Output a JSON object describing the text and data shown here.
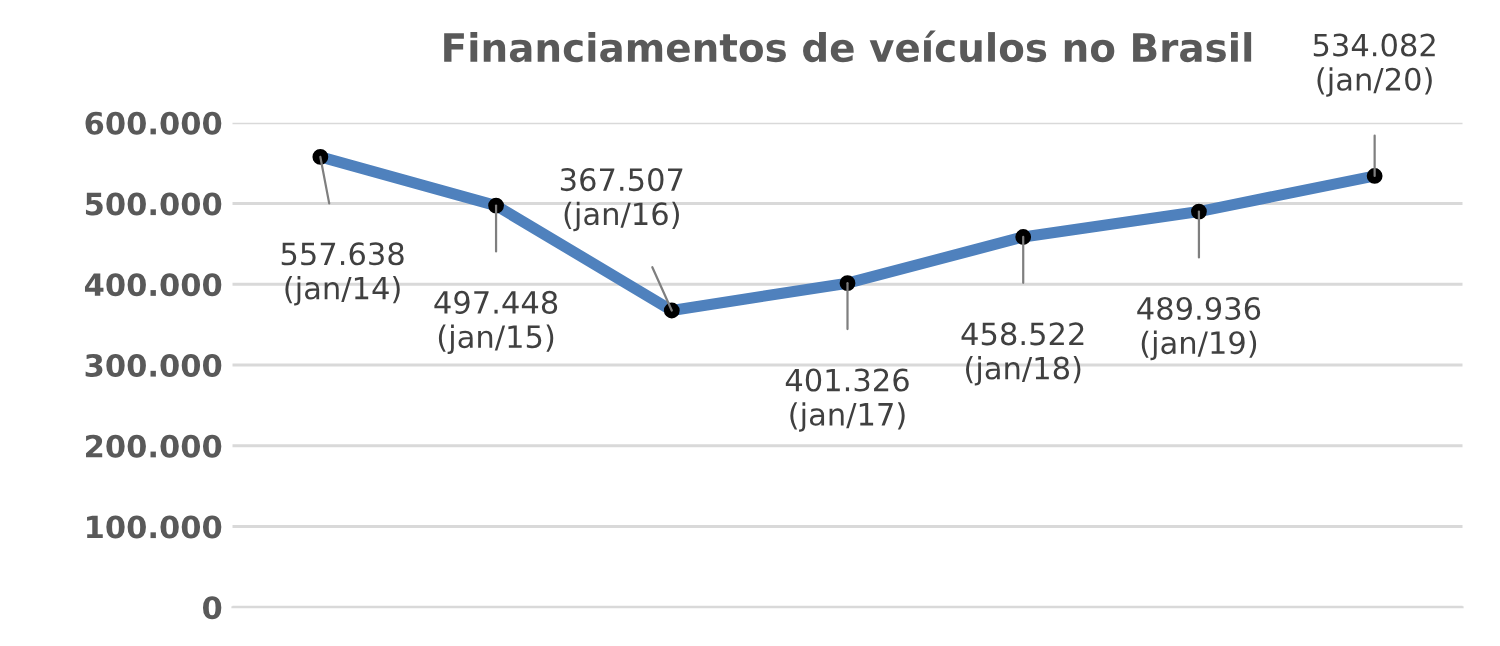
{
  "chart_data": {
    "type": "line",
    "title": "Financiamentos de veículos no Brasil",
    "categories": [
      null,
      null,
      null,
      null,
      null,
      null,
      null
    ],
    "series": [
      {
        "color": "#4f81bd",
        "values": [
          557638,
          497448,
          367507,
          401326,
          458522,
          489936,
          534082
        ],
        "value_labels": [
          "557.638\n(jan/14)",
          "497.448\n(jan/15)",
          "367.507\n(jan/16)",
          "401.326\n(jan/17)",
          "458.522\n(jan/18)",
          "489.936\n(jan/19)",
          "534.082\n(jan/20)"
        ]
      }
    ],
    "ylim": [
      0,
      600000
    ],
    "yticks": [
      {
        "value": 0,
        "label": "0"
      },
      {
        "value": 100000,
        "label": "100.000"
      },
      {
        "value": 200000,
        "label": "200.000"
      },
      {
        "value": 300000,
        "label": "300.000"
      },
      {
        "value": 400000,
        "label": "400.000"
      },
      {
        "value": 500000,
        "label": "500.000"
      },
      {
        "value": 600000,
        "label": "600.000"
      }
    ],
    "grid": "y",
    "marker": "circle",
    "line_style": "solid",
    "tick_labels": "y",
    "legend": false
  }
}
